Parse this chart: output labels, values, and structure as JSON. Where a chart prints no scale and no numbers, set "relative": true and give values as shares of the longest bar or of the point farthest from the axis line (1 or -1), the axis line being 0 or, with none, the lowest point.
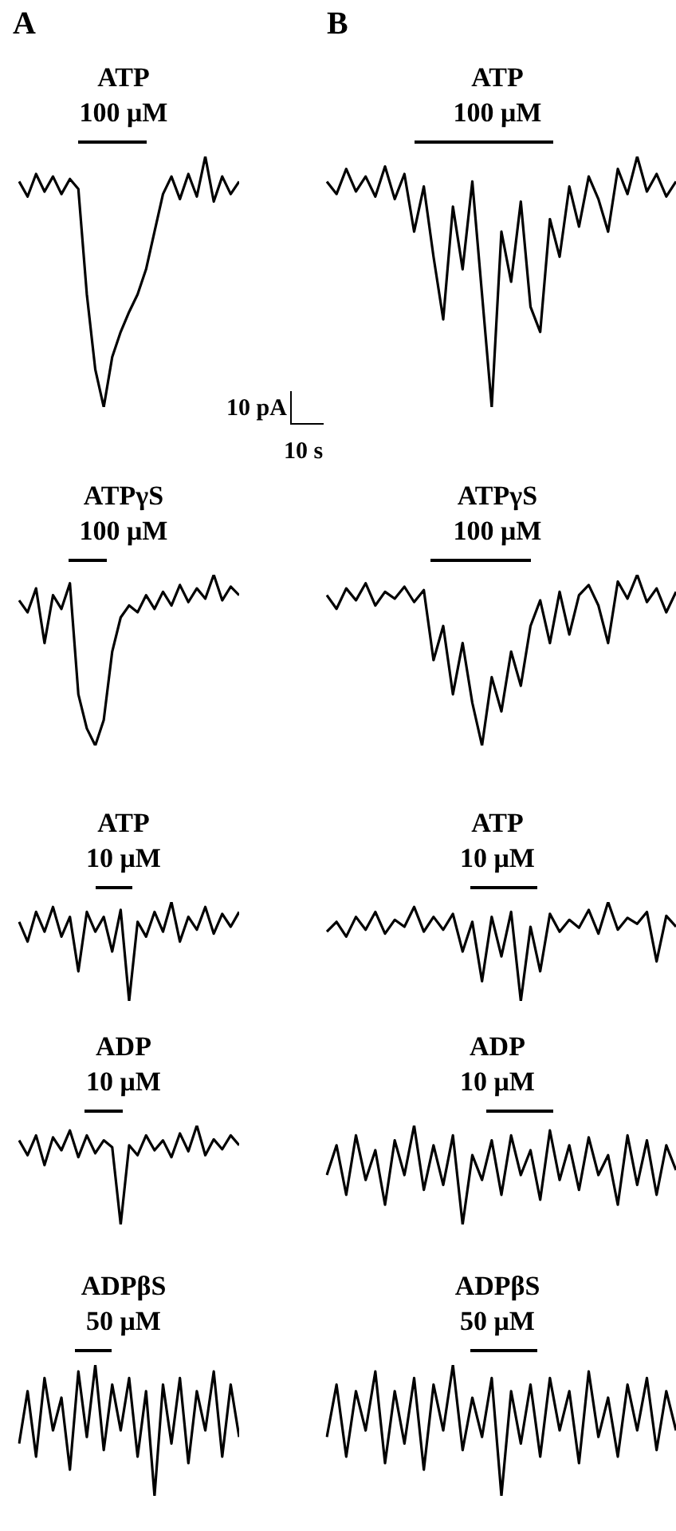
{
  "chart_data": [
    {
      "type": "line",
      "title": "ATP",
      "subtitle": "100 μM",
      "annotations": [
        "A",
        "10 pA",
        "10 s"
      ],
      "relative": true,
      "categories": [
        null,
        null,
        null,
        null,
        null,
        null,
        null,
        null,
        null,
        null,
        null,
        null,
        null,
        null,
        null,
        null,
        null,
        null,
        null,
        null,
        null,
        null,
        null,
        null,
        null,
        null,
        null
      ],
      "series": [
        {
          "color": "#000000",
          "values": [
            0.9,
            0.84,
            0.93,
            0.86,
            0.92,
            0.85,
            0.91,
            0.87,
            0.45,
            0.15,
            0.0,
            0.2,
            0.3,
            0.38,
            0.45,
            0.55,
            0.7,
            0.85,
            0.92,
            0.83,
            0.93,
            0.84,
            1.0,
            0.82,
            0.92,
            0.85,
            0.9
          ]
        }
      ]
    },
    {
      "type": "line",
      "title": "ATP",
      "subtitle": "100 μM",
      "annotations": [
        "B"
      ],
      "relative": true,
      "categories": [
        null,
        null,
        null,
        null,
        null,
        null,
        null,
        null,
        null,
        null,
        null,
        null,
        null,
        null,
        null,
        null,
        null,
        null,
        null,
        null,
        null,
        null,
        null,
        null,
        null,
        null,
        null,
        null,
        null,
        null,
        null,
        null,
        null,
        null,
        null,
        null,
        null
      ],
      "series": [
        {
          "color": "#000000",
          "values": [
            0.9,
            0.85,
            0.95,
            0.86,
            0.92,
            0.84,
            0.96,
            0.83,
            0.93,
            0.7,
            0.88,
            0.6,
            0.35,
            0.8,
            0.55,
            0.9,
            0.45,
            0.0,
            0.7,
            0.5,
            0.82,
            0.4,
            0.3,
            0.75,
            0.6,
            0.88,
            0.72,
            0.92,
            0.83,
            0.7,
            0.95,
            0.85,
            1.0,
            0.86,
            0.93,
            0.84,
            0.9
          ]
        }
      ]
    },
    {
      "type": "line",
      "title": "ATPγS",
      "subtitle": "100 μM",
      "relative": true,
      "categories": [
        null,
        null,
        null,
        null,
        null,
        null,
        null,
        null,
        null,
        null,
        null,
        null,
        null,
        null,
        null,
        null,
        null,
        null,
        null,
        null,
        null,
        null,
        null,
        null,
        null,
        null,
        null
      ],
      "series": [
        {
          "color": "#000000",
          "values": [
            0.85,
            0.78,
            0.92,
            0.6,
            0.88,
            0.8,
            0.95,
            0.3,
            0.1,
            0.0,
            0.15,
            0.55,
            0.75,
            0.82,
            0.78,
            0.88,
            0.8,
            0.9,
            0.82,
            0.94,
            0.84,
            0.92,
            0.86,
            1.0,
            0.85,
            0.93,
            0.88
          ]
        }
      ]
    },
    {
      "type": "line",
      "title": "ATPγS",
      "subtitle": "100 μM",
      "relative": true,
      "categories": [
        null,
        null,
        null,
        null,
        null,
        null,
        null,
        null,
        null,
        null,
        null,
        null,
        null,
        null,
        null,
        null,
        null,
        null,
        null,
        null,
        null,
        null,
        null,
        null,
        null,
        null,
        null,
        null,
        null,
        null,
        null,
        null,
        null,
        null,
        null,
        null,
        null
      ],
      "series": [
        {
          "color": "#000000",
          "values": [
            0.88,
            0.8,
            0.92,
            0.85,
            0.95,
            0.82,
            0.9,
            0.86,
            0.93,
            0.84,
            0.91,
            0.5,
            0.7,
            0.3,
            0.6,
            0.25,
            0.0,
            0.4,
            0.2,
            0.55,
            0.35,
            0.7,
            0.85,
            0.6,
            0.9,
            0.65,
            0.88,
            0.94,
            0.82,
            0.6,
            0.96,
            0.86,
            1.0,
            0.84,
            0.92,
            0.78,
            0.9
          ]
        }
      ]
    },
    {
      "type": "line",
      "title": "ATP",
      "subtitle": "10 μM",
      "relative": true,
      "categories": [
        null,
        null,
        null,
        null,
        null,
        null,
        null,
        null,
        null,
        null,
        null,
        null,
        null,
        null,
        null,
        null,
        null,
        null,
        null,
        null,
        null,
        null,
        null,
        null,
        null,
        null,
        null
      ],
      "series": [
        {
          "color": "#000000",
          "values": [
            0.8,
            0.6,
            0.9,
            0.7,
            0.95,
            0.65,
            0.85,
            0.3,
            0.9,
            0.7,
            0.85,
            0.5,
            0.92,
            0.0,
            0.8,
            0.65,
            0.9,
            0.7,
            1.0,
            0.6,
            0.85,
            0.72,
            0.95,
            0.68,
            0.88,
            0.75,
            0.9
          ]
        }
      ]
    },
    {
      "type": "line",
      "title": "ATP",
      "subtitle": "10 μM",
      "relative": true,
      "categories": [
        null,
        null,
        null,
        null,
        null,
        null,
        null,
        null,
        null,
        null,
        null,
        null,
        null,
        null,
        null,
        null,
        null,
        null,
        null,
        null,
        null,
        null,
        null,
        null,
        null,
        null,
        null,
        null,
        null,
        null,
        null,
        null,
        null,
        null,
        null,
        null,
        null
      ],
      "series": [
        {
          "color": "#000000",
          "values": [
            0.7,
            0.8,
            0.65,
            0.85,
            0.72,
            0.9,
            0.68,
            0.82,
            0.75,
            0.95,
            0.7,
            0.85,
            0.72,
            0.88,
            0.5,
            0.8,
            0.2,
            0.85,
            0.45,
            0.9,
            0.0,
            0.75,
            0.3,
            0.88,
            0.7,
            0.82,
            0.74,
            0.92,
            0.68,
            1.0,
            0.72,
            0.84,
            0.78,
            0.9,
            0.4,
            0.86,
            0.75
          ]
        }
      ]
    },
    {
      "type": "line",
      "title": "ADP",
      "subtitle": "10 μM",
      "relative": true,
      "categories": [
        null,
        null,
        null,
        null,
        null,
        null,
        null,
        null,
        null,
        null,
        null,
        null,
        null,
        null,
        null,
        null,
        null,
        null,
        null,
        null,
        null,
        null,
        null,
        null,
        null,
        null,
        null
      ],
      "series": [
        {
          "color": "#000000",
          "values": [
            0.85,
            0.7,
            0.9,
            0.6,
            0.88,
            0.75,
            0.95,
            0.68,
            0.9,
            0.72,
            0.85,
            0.78,
            0.0,
            0.8,
            0.7,
            0.9,
            0.75,
            0.85,
            0.68,
            0.92,
            0.74,
            1.0,
            0.7,
            0.86,
            0.76,
            0.9,
            0.8
          ]
        }
      ]
    },
    {
      "type": "line",
      "title": "ADP",
      "subtitle": "10 μM",
      "relative": true,
      "categories": [
        null,
        null,
        null,
        null,
        null,
        null,
        null,
        null,
        null,
        null,
        null,
        null,
        null,
        null,
        null,
        null,
        null,
        null,
        null,
        null,
        null,
        null,
        null,
        null,
        null,
        null,
        null,
        null,
        null,
        null,
        null,
        null,
        null,
        null,
        null,
        null,
        null
      ],
      "series": [
        {
          "color": "#000000",
          "values": [
            0.5,
            0.8,
            0.3,
            0.9,
            0.45,
            0.75,
            0.2,
            0.85,
            0.5,
            1.0,
            0.35,
            0.8,
            0.4,
            0.9,
            0.0,
            0.7,
            0.45,
            0.85,
            0.3,
            0.9,
            0.5,
            0.75,
            0.25,
            0.95,
            0.45,
            0.8,
            0.35,
            0.88,
            0.5,
            0.7,
            0.2,
            0.9,
            0.4,
            0.85,
            0.3,
            0.8,
            0.55
          ]
        }
      ]
    },
    {
      "type": "line",
      "title": "ADPβS",
      "subtitle": "50 μM",
      "relative": true,
      "categories": [
        null,
        null,
        null,
        null,
        null,
        null,
        null,
        null,
        null,
        null,
        null,
        null,
        null,
        null,
        null,
        null,
        null,
        null,
        null,
        null,
        null,
        null,
        null,
        null,
        null,
        null,
        null
      ],
      "series": [
        {
          "color": "#000000",
          "values": [
            0.4,
            0.8,
            0.3,
            0.9,
            0.5,
            0.75,
            0.2,
            0.95,
            0.45,
            1.0,
            0.35,
            0.85,
            0.5,
            0.9,
            0.3,
            0.8,
            0.0,
            0.85,
            0.4,
            0.9,
            0.25,
            0.8,
            0.5,
            0.95,
            0.3,
            0.85,
            0.45
          ]
        }
      ]
    },
    {
      "type": "line",
      "title": "ADPβS",
      "subtitle": "50 μM",
      "relative": true,
      "categories": [
        null,
        null,
        null,
        null,
        null,
        null,
        null,
        null,
        null,
        null,
        null,
        null,
        null,
        null,
        null,
        null,
        null,
        null,
        null,
        null,
        null,
        null,
        null,
        null,
        null,
        null,
        null,
        null,
        null,
        null,
        null,
        null,
        null,
        null,
        null,
        null,
        null
      ],
      "series": [
        {
          "color": "#000000",
          "values": [
            0.45,
            0.85,
            0.3,
            0.8,
            0.5,
            0.95,
            0.25,
            0.8,
            0.4,
            0.9,
            0.2,
            0.85,
            0.5,
            1.0,
            0.35,
            0.75,
            0.45,
            0.9,
            0.0,
            0.8,
            0.4,
            0.85,
            0.3,
            0.9,
            0.5,
            0.8,
            0.25,
            0.95,
            0.45,
            0.75,
            0.3,
            0.85,
            0.5,
            0.9,
            0.35,
            0.8,
            0.5
          ]
        }
      ]
    }
  ]
}
